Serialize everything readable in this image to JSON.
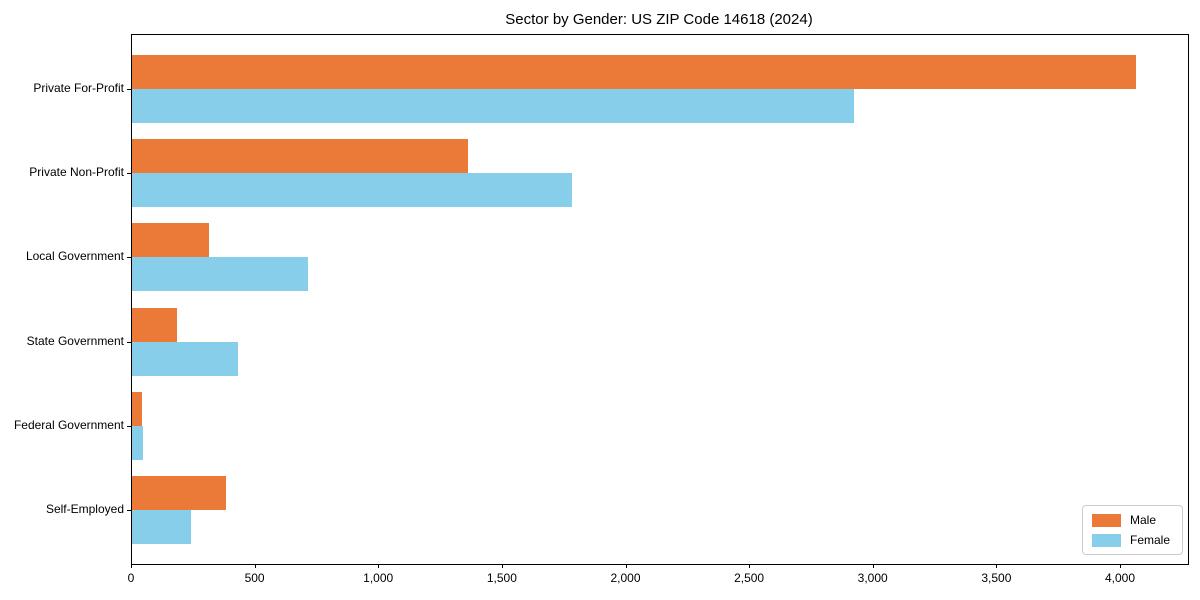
{
  "chart_data": {
    "type": "bar",
    "orientation": "horizontal",
    "title": "Sector by Gender: US ZIP Code 14618 (2024)",
    "categories": [
      "Private For-Profit",
      "Private Non-Profit",
      "Local Government",
      "State Government",
      "Federal Government",
      "Self-Employed"
    ],
    "series": [
      {
        "name": "Male",
        "color": "#EB7A38",
        "values": [
          4060,
          1360,
          310,
          180,
          40,
          380
        ]
      },
      {
        "name": "Female",
        "color": "#87CEEB",
        "values": [
          2920,
          1780,
          710,
          430,
          45,
          240
        ]
      }
    ],
    "xlabel": "",
    "ylabel": "",
    "xlim": [
      0,
      4271
    ],
    "xticks": [
      0,
      500,
      1000,
      1500,
      2000,
      2500,
      3000,
      3500,
      4000
    ],
    "xtick_labels": [
      "0",
      "500",
      "1,000",
      "1,500",
      "2,000",
      "2,500",
      "3,000",
      "3,500",
      "4,000"
    ],
    "legend_position": "lower right",
    "grid": false,
    "axis_color": "#000000",
    "legend_border_color": "#cccccc"
  }
}
